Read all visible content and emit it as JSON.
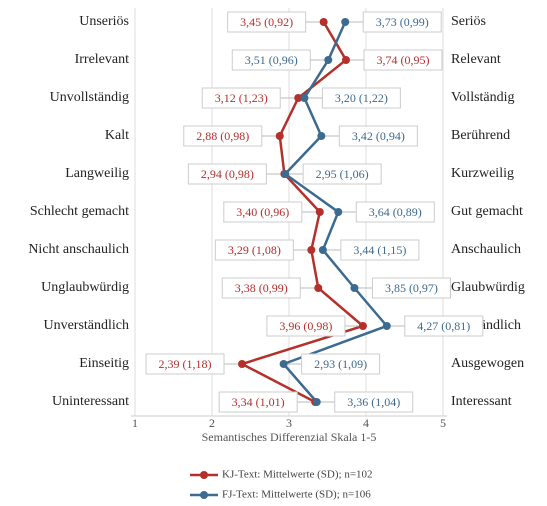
{
  "chart_data": {
    "type": "line",
    "categories": [
      "Unseriös",
      "Irrelevant",
      "Unvollständig",
      "Kalt",
      "Langweilig",
      "Schlecht gemacht",
      "Nicht anschaulich",
      "Unglaubwürdig",
      "Unverständlich",
      "Einseitig",
      "Uninteressant"
    ],
    "right_categories": [
      "Seriös",
      "Relevant",
      "Vollständig",
      "Berührend",
      "Kurzweilig",
      "Gut gemacht",
      "Anschaulich",
      "Glaubwürdig",
      "Verständlich",
      "Ausgewogen",
      "Interessant"
    ],
    "xlabel": "Semantisches Differenzial Skala 1-5",
    "xlim": [
      1,
      5
    ],
    "xticks": [
      1,
      2,
      3,
      4,
      5
    ],
    "grid": true,
    "series": [
      {
        "name": "KJ-Text: Mittelwerte (SD); n=102",
        "color": "#b5302a",
        "values": [
          3.45,
          3.74,
          3.12,
          2.88,
          2.94,
          3.4,
          3.29,
          3.38,
          3.96,
          2.39,
          3.34
        ],
        "value_labels": [
          "3,45 (0,92)",
          "3,74 (0,95)",
          "3,12 (1,23)",
          "2,88 (0,98)",
          "2,94 (0,98)",
          "3,40 (0,96)",
          "3,29 (1,08)",
          "3,38 (0,99)",
          "3,96 (0,98)",
          "2,39 (1,18)",
          "3,34 (1,01)"
        ]
      },
      {
        "name": "FJ-Text: Mittelwerte (SD); n=106",
        "color": "#3d6a8f",
        "values": [
          3.73,
          3.51,
          3.2,
          3.42,
          2.95,
          3.64,
          3.44,
          3.85,
          4.27,
          2.93,
          3.36
        ],
        "value_labels": [
          "3,73 (0,99)",
          "3,51 (0,96)",
          "3,20 (1,22)",
          "3,42 (0,94)",
          "2,95 (1,06)",
          "3,64 (0,89)",
          "3,44 (1,15)",
          "3,85 (0,97)",
          "4,27 (0,81)",
          "2,93 (1,09)",
          "3,36 (1,04)"
        ]
      }
    ]
  }
}
